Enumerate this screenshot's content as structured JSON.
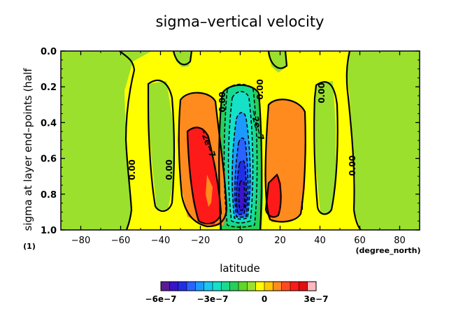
{
  "chart_data": {
    "type": "heatmap",
    "title": "sigma–vertical velocity",
    "xlabel": "latitude",
    "xunit": "(degree_north)",
    "ylabel": "sigma at layer end–points (half",
    "yunit": "(1)",
    "xlim": [
      -90,
      90
    ],
    "ylim": [
      1.0,
      0.0
    ],
    "xticks": [
      -80,
      -60,
      -40,
      -20,
      0,
      20,
      40,
      60,
      80
    ],
    "yticks": [
      0.0,
      0.2,
      0.4,
      0.6,
      0.8,
      1.0
    ],
    "xtick_labels": [
      "−80",
      "−60",
      "−40",
      "−20",
      "0",
      "20",
      "40",
      "60",
      "80"
    ],
    "ytick_labels": [
      "0.0",
      "0.2",
      "0.4",
      "0.6",
      "0.8",
      "1.0"
    ],
    "contour_labels": [
      "0.00",
      "0.00",
      "0.00",
      "0.00",
      "0.00",
      "0.00",
      "−2e−7",
      "−2e−7",
      "0.00"
    ],
    "colorbar": {
      "range": [
        -6e-07,
        3e-07
      ],
      "ticks": [
        -6e-07,
        -3e-07,
        0,
        3e-07
      ],
      "tick_labels": [
        "−6e−7",
        "−3e−7",
        "0",
        "3e−7"
      ],
      "colors": [
        "#5a1a96",
        "#3b14c8",
        "#1f2fe6",
        "#2a63ff",
        "#1b9bff",
        "#19c8ee",
        "#15e0c8",
        "#19d98f",
        "#26cf58",
        "#5ed62a",
        "#9be02c",
        "#ffff00",
        "#ffc800",
        "#ff8a1e",
        "#ff4a20",
        "#ff1a1a",
        "#e01010",
        "#ffb8c0"
      ]
    },
    "regions": [
      {
        "name": "background",
        "level": 2e-08,
        "color": "#ffff00"
      },
      {
        "name": "southern-high-latitude-band",
        "level": -3e-08,
        "color": "#9be02c"
      },
      {
        "name": "northern-high-latitude-band",
        "level": -3e-08,
        "color": "#9be02c"
      },
      {
        "name": "southern-descending-cell",
        "level": 1.6e-07,
        "color": "#ff8a1e"
      },
      {
        "name": "southern-descending-core",
        "level": 2.6e-07,
        "color": "#ff1a1a"
      },
      {
        "name": "northern-descending-cell",
        "level": 1.6e-07,
        "color": "#ff8a1e"
      },
      {
        "name": "northern-descending-core",
        "level": 2.6e-07,
        "color": "#ff1a1a"
      },
      {
        "name": "equatorial-ascent",
        "level": -5.5e-07,
        "color": "#1f2fe6"
      }
    ]
  }
}
